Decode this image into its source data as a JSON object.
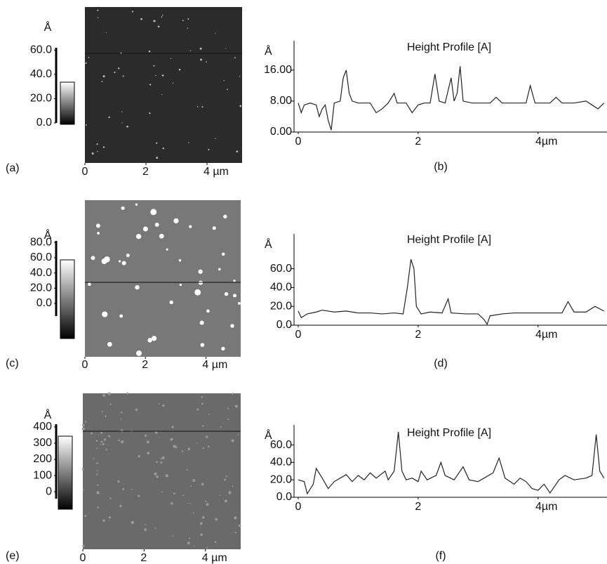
{
  "chart_data": [
    {
      "type": "image",
      "panel_label": "(a)",
      "bar_unit": "Å",
      "clim": [
        0,
        62
      ],
      "bar_ticks": [
        {
          "value": 0,
          "label": "0.0"
        },
        {
          "value": 20,
          "label": "20.0"
        },
        {
          "value": 40,
          "label": "40.0"
        },
        {
          "value": 60,
          "label": "60.0"
        }
      ],
      "xlim": [
        0,
        5.15
      ],
      "xticks": [
        0,
        2,
        {
          "value": 4,
          "label": "4 µm"
        }
      ]
    },
    {
      "type": "line",
      "title": "Height Profile [A]",
      "panel_label": "(b)",
      "ylabel": "Å",
      "x": [
        0,
        0.05,
        0.1,
        0.2,
        0.3,
        0.35,
        0.4,
        0.45,
        0.5,
        0.55,
        0.6,
        0.7,
        0.75,
        0.8,
        0.85,
        0.9,
        1.0,
        1.1,
        1.2,
        1.3,
        1.4,
        1.5,
        1.6,
        1.65,
        1.8,
        1.9,
        2.0,
        2.1,
        2.2,
        2.28,
        2.35,
        2.45,
        2.55,
        2.6,
        2.65,
        2.7,
        2.75,
        2.9,
        3.0,
        3.2,
        3.3,
        3.4,
        3.6,
        3.8,
        3.87,
        3.95,
        4.2,
        4.3,
        4.4,
        4.6,
        4.8,
        4.9,
        5.0,
        5.1
      ],
      "values": [
        7.5,
        5,
        7,
        7.5,
        7,
        4,
        6,
        7,
        3,
        0.5,
        7.5,
        8,
        14,
        16,
        10,
        8,
        7.5,
        7.5,
        7.5,
        5,
        6,
        7.5,
        10,
        7.5,
        7.5,
        5,
        7,
        7.5,
        7.5,
        15,
        8,
        7.5,
        14,
        8,
        10,
        17,
        8,
        7.5,
        7.5,
        7.5,
        9,
        7.5,
        7.5,
        7.5,
        12,
        7.5,
        7.5,
        9,
        7.5,
        7.5,
        8,
        7,
        6,
        7.5
      ],
      "xlim": [
        0,
        5.15
      ],
      "ylim": [
        0,
        23.6
      ],
      "xticks": [
        0,
        2,
        {
          "value": 4,
          "label": "4µm"
        }
      ],
      "yticks": [
        {
          "value": 0,
          "label": "0.00"
        },
        {
          "value": 8,
          "label": "8.00"
        },
        {
          "value": 16,
          "label": "16.00"
        }
      ],
      "color": "#222222"
    },
    {
      "type": "image",
      "panel_label": "(c)",
      "bar_unit": "Å",
      "clim": [
        -16.6,
        82
      ],
      "bar_ticks": [
        {
          "value": 0,
          "label": "0.0"
        },
        {
          "value": 20,
          "label": "20.0"
        },
        {
          "value": 40,
          "label": "40.0"
        },
        {
          "value": 60,
          "label": "60.0"
        },
        {
          "value": 80,
          "label": "80.0"
        }
      ],
      "xlim": [
        0,
        5.15
      ],
      "xticks": [
        0,
        2,
        {
          "value": 4,
          "label": "4 µm"
        }
      ]
    },
    {
      "type": "line",
      "title": "Height Profile [A]",
      "panel_label": "(d)",
      "ylabel": "Å",
      "x": [
        0,
        0.05,
        0.15,
        0.3,
        0.4,
        0.6,
        0.8,
        1.0,
        1.2,
        1.4,
        1.6,
        1.75,
        1.82,
        1.88,
        1.93,
        1.97,
        2.05,
        2.2,
        2.4,
        2.5,
        2.55,
        2.8,
        3.0,
        3.1,
        3.15,
        3.2,
        3.4,
        3.6,
        3.8,
        4.0,
        4.2,
        4.4,
        4.5,
        4.6,
        4.8,
        4.95,
        5.1
      ],
      "values": [
        15,
        8,
        12,
        14,
        16,
        14,
        15,
        13,
        13,
        12,
        13,
        12,
        40,
        70,
        60,
        20,
        12,
        14,
        13,
        28,
        13,
        12,
        12,
        6,
        1,
        10,
        12,
        13,
        13,
        13,
        13,
        13,
        25,
        14,
        14,
        20,
        15
      ],
      "xlim": [
        0,
        5.15
      ],
      "ylim": [
        0,
        97
      ],
      "xticks": [
        0,
        2,
        {
          "value": 4,
          "label": "4µm"
        }
      ],
      "yticks": [
        {
          "value": 0,
          "label": "0.0"
        },
        {
          "value": 20,
          "label": "20.0"
        },
        {
          "value": 40,
          "label": "40.0"
        },
        {
          "value": 60,
          "label": "60.0"
        }
      ],
      "color": "#222222"
    },
    {
      "type": "image",
      "panel_label": "(e)",
      "bar_unit": "Å",
      "clim": [
        -43,
        417
      ],
      "bar_ticks": [
        0,
        100,
        200,
        300,
        400
      ],
      "xlim": [
        0,
        5.15
      ],
      "xticks": [
        0,
        2,
        {
          "value": 4,
          "label": "4 µm"
        }
      ]
    },
    {
      "type": "line",
      "title": "Height Profile [A]",
      "panel_label": "(f)",
      "ylabel": "Å",
      "x": [
        0,
        0.1,
        0.15,
        0.25,
        0.3,
        0.4,
        0.5,
        0.6,
        0.7,
        0.8,
        0.9,
        1.0,
        1.1,
        1.2,
        1.3,
        1.45,
        1.5,
        1.6,
        1.67,
        1.73,
        1.8,
        1.9,
        2.0,
        2.05,
        2.15,
        2.3,
        2.38,
        2.45,
        2.6,
        2.75,
        2.85,
        3.0,
        3.1,
        3.25,
        3.35,
        3.45,
        3.6,
        3.7,
        3.8,
        3.9,
        4.0,
        4.1,
        4.2,
        4.35,
        4.45,
        4.6,
        4.8,
        4.9,
        4.97,
        5.03,
        5.1
      ],
      "values": [
        20,
        18,
        4,
        15,
        33,
        22,
        10,
        18,
        22,
        26,
        18,
        25,
        20,
        28,
        22,
        30,
        20,
        30,
        75,
        30,
        20,
        22,
        18,
        30,
        20,
        25,
        40,
        25,
        20,
        35,
        20,
        18,
        22,
        28,
        45,
        22,
        15,
        22,
        18,
        10,
        8,
        15,
        5,
        20,
        25,
        20,
        22,
        25,
        72,
        30,
        22
      ],
      "xlim": [
        0,
        5.15
      ],
      "ylim": [
        0,
        83
      ],
      "xticks": [
        0,
        2,
        {
          "value": 4,
          "label": "4µm"
        }
      ],
      "yticks": [
        {
          "value": 0,
          "label": "0.0"
        },
        {
          "value": 20,
          "label": "20.0"
        },
        {
          "value": 40,
          "label": "40.0"
        },
        {
          "value": 60,
          "label": "60.0"
        }
      ],
      "color": "#222222"
    }
  ]
}
